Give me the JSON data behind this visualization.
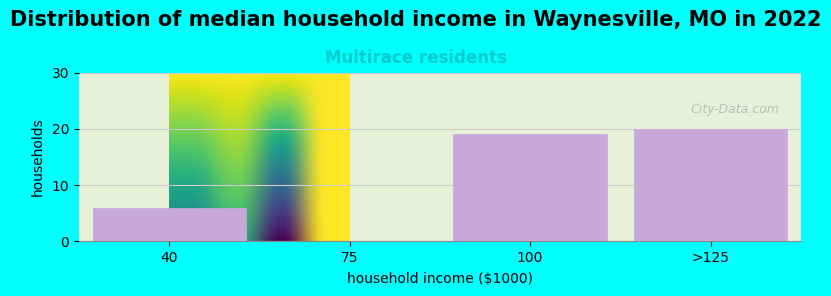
{
  "title": "Distribution of median household income in Waynesville, MO in 2022",
  "subtitle": "Multirace residents",
  "subtitle_color": "#00CCCC",
  "categories": [
    "40",
    "75",
    "100",
    ">125"
  ],
  "values": [
    6,
    0,
    19,
    20
  ],
  "bar_color": "#C8A8D8",
  "bar_edge_color": "#C8A8D8",
  "xlabel": "household income ($1000)",
  "ylabel": "households",
  "ylim": [
    0,
    30
  ],
  "yticks": [
    0,
    10,
    20,
    30
  ],
  "background_color": "#00FFFF",
  "plot_bg_top": "#FFFFFF",
  "plot_bg_bottom": "#E8F0D8",
  "grid_color": "#CCCCCC",
  "title_fontsize": 15,
  "subtitle_fontsize": 12,
  "axis_label_fontsize": 10,
  "tick_fontsize": 10,
  "watermark": "City-Data.com"
}
